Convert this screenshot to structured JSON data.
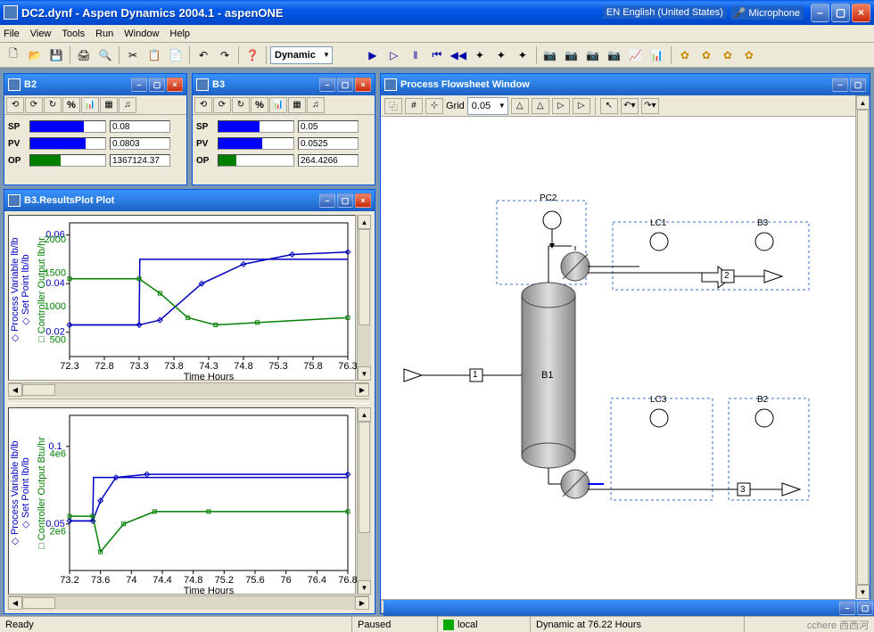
{
  "app": {
    "title": "DC2.dynf - Aspen Dynamics 2004.1 - aspenONE",
    "lang": "EN English (United States)",
    "mic": "Microphone"
  },
  "menu": {
    "file": "File",
    "view": "View",
    "tools": "Tools",
    "run": "Run",
    "window": "Window",
    "help": "Help"
  },
  "toolbar": {
    "mode": "Dynamic"
  },
  "b2": {
    "title": "B2",
    "sp_label": "SP",
    "pv_label": "PV",
    "op_label": "OP",
    "sp": "0.08",
    "pv": "0.0803",
    "op": "1367124.37",
    "sp_pct": 72,
    "pv_pct": 74,
    "op_pct": 40,
    "sp_color": "#0000ff",
    "pv_color": "#0000ff",
    "op_color": "#008000"
  },
  "b3": {
    "title": "B3",
    "sp_label": "SP",
    "pv_label": "PV",
    "op_label": "OP",
    "sp": "0.05",
    "pv": "0.0525",
    "op": "264.4266",
    "sp_pct": 55,
    "pv_pct": 58,
    "op_pct": 24,
    "sp_color": "#0000ff",
    "pv_color": "#0000ff",
    "op_color": "#008000"
  },
  "plot": {
    "title": "B3.ResultsPlot Plot",
    "xlabel": "Time Hours",
    "y1_label": "Process Variable lb/lb",
    "y2_label": "Set Point lb/lb",
    "y3_label": "Controller Output lb/hr",
    "pv_color": "#0000c0",
    "sp_color": "#0000c0",
    "co_color": "#008000",
    "xticks": [
      "72.3",
      "72.8",
      "73.3",
      "73.8",
      "74.3",
      "74.8",
      "75.3",
      "75.8",
      "76.3"
    ],
    "y1_ticks": [
      "0.02",
      "0.04",
      "0.06"
    ],
    "y3_ticks": [
      "500",
      "1000",
      "1500",
      "2000"
    ],
    "xmin": 72.3,
    "xmax": 76.3,
    "y1min": 0.01,
    "y1max": 0.065,
    "pv_series": [
      [
        72.3,
        0.023
      ],
      [
        73.3,
        0.023
      ],
      [
        73.6,
        0.025
      ],
      [
        74.2,
        0.04
      ],
      [
        74.8,
        0.048
      ],
      [
        75.5,
        0.052
      ],
      [
        76.3,
        0.053
      ]
    ],
    "sp_series": [
      [
        72.3,
        0.023
      ],
      [
        73.3,
        0.023
      ],
      [
        73.31,
        0.05
      ],
      [
        76.3,
        0.05
      ]
    ],
    "co_series_y": [
      [
        72.3,
        0.042
      ],
      [
        73.3,
        0.042
      ],
      [
        73.6,
        0.036
      ],
      [
        74.0,
        0.026
      ],
      [
        74.4,
        0.023
      ],
      [
        75.0,
        0.024
      ],
      [
        76.3,
        0.026
      ]
    ]
  },
  "plot2": {
    "xlabel": "Time Hours",
    "y1_label": "Process Variable lb/lb",
    "y2_label": "Set Point lb/lb",
    "y3_label": "Controller Output Btu/hr",
    "xticks": [
      "73.2",
      "73.6",
      "74",
      "74.4",
      "74.8",
      "75.2",
      "75.6",
      "76",
      "76.4",
      "76.8"
    ],
    "y1_ticks": [
      "0.05",
      "0.1"
    ],
    "y3_ticks": [
      "2e6",
      "4e6"
    ],
    "xmin": 73.2,
    "xmax": 76.8,
    "y1min": 0.02,
    "y1max": 0.12,
    "pv_series": [
      [
        73.2,
        0.052
      ],
      [
        73.5,
        0.052
      ],
      [
        73.6,
        0.065
      ],
      [
        73.8,
        0.08
      ],
      [
        74.2,
        0.082
      ],
      [
        76.8,
        0.082
      ]
    ],
    "sp_series": [
      [
        73.2,
        0.052
      ],
      [
        73.5,
        0.052
      ],
      [
        73.51,
        0.08
      ],
      [
        76.8,
        0.08
      ]
    ],
    "co_series_y": [
      [
        73.2,
        0.055
      ],
      [
        73.5,
        0.055
      ],
      [
        73.6,
        0.032
      ],
      [
        73.9,
        0.05
      ],
      [
        74.3,
        0.058
      ],
      [
        75.0,
        0.058
      ],
      [
        76.8,
        0.058
      ]
    ]
  },
  "flowsheet": {
    "title": "Process Flowsheet Window",
    "grid_label": "Grid",
    "grid_val": "0.05",
    "nodes": {
      "pc2": "PC2",
      "lc1": "LC1",
      "b3": "B3",
      "b1": "B1",
      "lc3": "LC3",
      "b2": "B2",
      "s1": "1",
      "s2": "2",
      "s3": "3"
    }
  },
  "status": {
    "ready": "Ready",
    "paused": "Paused",
    "local": "local",
    "time": "Dynamic at 76.22 Hours",
    "watermark": "cchere 西西河"
  }
}
